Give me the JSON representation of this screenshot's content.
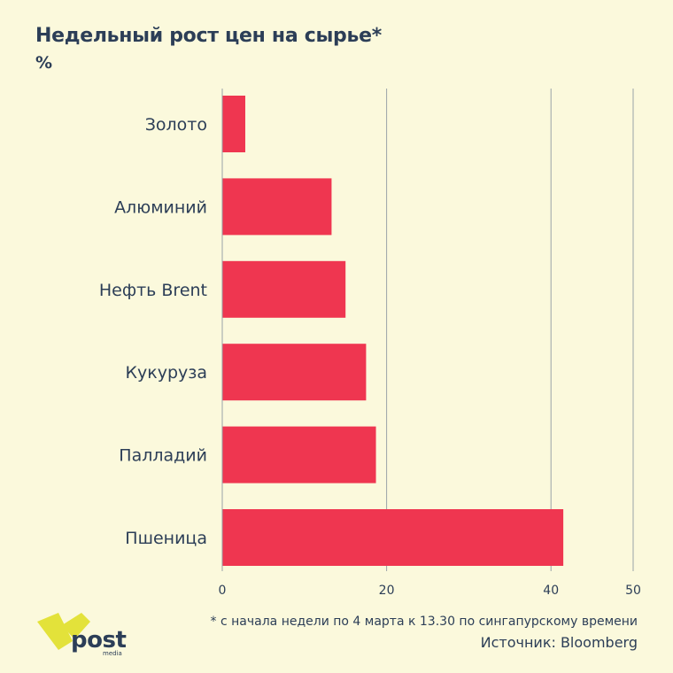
{
  "title": "Недельный рост цен на сырье*",
  "unit": "%",
  "footnote": "* с начала недели по 4 марта к 13.30 по сингапурскому времени",
  "source": "Источник: Bloomberg",
  "logo": {
    "text": "post",
    "subtext": "media"
  },
  "colors": {
    "bar": "#ef3650",
    "grid": "#9aa3a8",
    "text": "#2c3e57",
    "background": "#fbf9dc",
    "logo_yellow": "#e3e23a"
  },
  "chart_data": {
    "type": "bar",
    "orientation": "horizontal",
    "categories": [
      "Золото",
      "Алюминий",
      "Нефть Brent",
      "Кукуруза",
      "Палладий",
      "Пшеница"
    ],
    "values": [
      2.8,
      13.3,
      15.0,
      17.5,
      18.7,
      41.5
    ],
    "xlim": [
      0,
      50
    ],
    "xticks": [
      0,
      20,
      40,
      50
    ],
    "grid": true
  }
}
